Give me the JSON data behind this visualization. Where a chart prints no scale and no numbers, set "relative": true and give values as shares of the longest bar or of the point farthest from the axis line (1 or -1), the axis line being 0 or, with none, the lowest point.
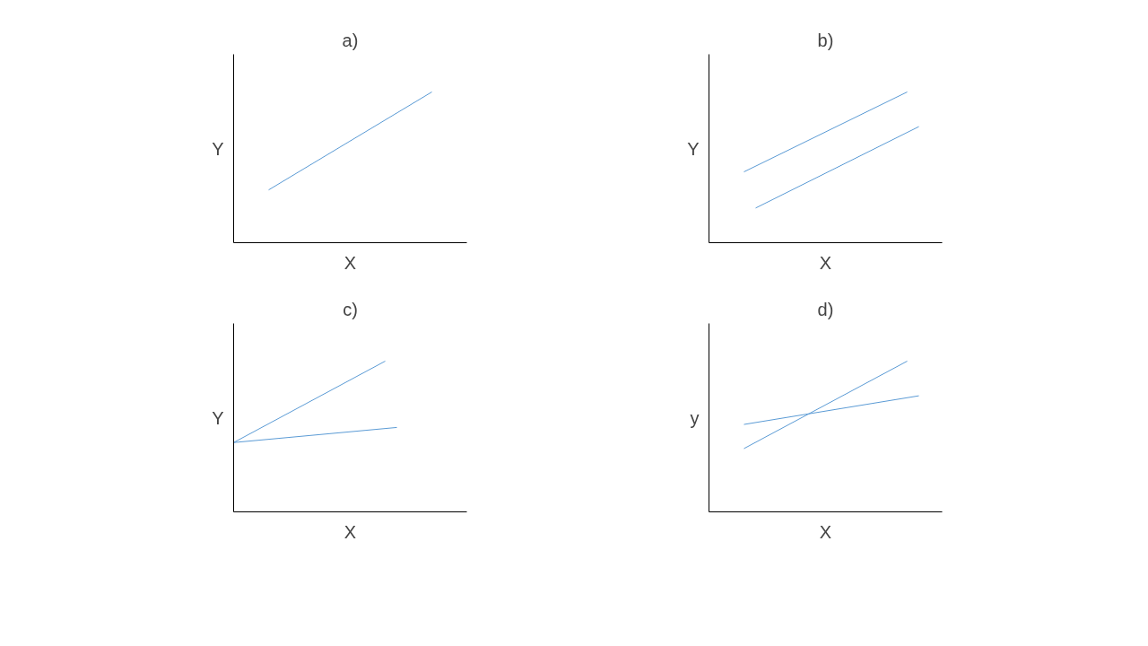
{
  "chart_data": [
    {
      "type": "line",
      "relative": true,
      "title": "a)",
      "xlabel": "X",
      "ylabel": "Y",
      "grid": false,
      "tick_labels": false,
      "categories": [
        null,
        null,
        null,
        null,
        null,
        null,
        null,
        null,
        null,
        null,
        null,
        null,
        null,
        null,
        null,
        null,
        null,
        null,
        null,
        null,
        null
      ],
      "series": [
        {
          "color": "#5b9bd5",
          "values": [
            null,
            null,
            null,
            0.35,
            null,
            null,
            null,
            null,
            null,
            null,
            null,
            null,
            null,
            null,
            null,
            null,
            null,
            1,
            null,
            null,
            null
          ]
        }
      ]
    },
    {
      "type": "line",
      "relative": true,
      "title": "b)",
      "xlabel": "X",
      "ylabel": "Y",
      "grid": false,
      "tick_labels": false,
      "categories": [
        null,
        null,
        null,
        null,
        null,
        null,
        null,
        null,
        null,
        null,
        null,
        null,
        null,
        null,
        null,
        null,
        null,
        null,
        null,
        null,
        null
      ],
      "series": [
        {
          "color": "#5b9bd5",
          "values": [
            null,
            null,
            null,
            0.47,
            null,
            null,
            null,
            null,
            null,
            null,
            null,
            null,
            null,
            null,
            null,
            null,
            null,
            1,
            null,
            null,
            null
          ]
        },
        {
          "color": "#5b9bd5",
          "values": [
            null,
            null,
            null,
            null,
            0.23,
            null,
            null,
            null,
            null,
            null,
            null,
            null,
            null,
            null,
            null,
            null,
            null,
            null,
            0.77,
            null,
            null
          ]
        }
      ]
    },
    {
      "type": "line",
      "relative": true,
      "title": "c)",
      "xlabel": "X",
      "ylabel": "Y",
      "grid": false,
      "tick_labels": false,
      "categories": [
        null,
        null,
        null,
        null,
        null,
        null,
        null,
        null,
        null,
        null,
        null,
        null,
        null,
        null,
        null,
        null,
        null,
        null,
        null,
        null,
        null
      ],
      "series": [
        {
          "color": "#5b9bd5",
          "values": [
            0.46,
            null,
            null,
            null,
            null,
            null,
            null,
            null,
            null,
            null,
            null,
            null,
            null,
            1,
            null,
            null,
            null,
            null,
            null,
            null,
            null
          ]
        },
        {
          "color": "#5b9bd5",
          "values": [
            0.46,
            null,
            null,
            null,
            null,
            null,
            null,
            null,
            null,
            null,
            null,
            null,
            null,
            null,
            0.56,
            null,
            null,
            null,
            null,
            null,
            null
          ]
        }
      ]
    },
    {
      "type": "line",
      "relative": true,
      "title": "d)",
      "xlabel": "X",
      "ylabel": "y",
      "grid": false,
      "tick_labels": false,
      "categories": [
        null,
        null,
        null,
        null,
        null,
        null,
        null,
        null,
        null,
        null,
        null,
        null,
        null,
        null,
        null,
        null,
        null,
        null,
        null,
        null,
        null
      ],
      "series": [
        {
          "color": "#5b9bd5",
          "values": [
            null,
            null,
            null,
            0.42,
            null,
            null,
            null,
            null,
            null,
            null,
            null,
            null,
            null,
            null,
            null,
            null,
            null,
            1,
            null,
            null,
            null
          ]
        },
        {
          "color": "#5b9bd5",
          "values": [
            null,
            null,
            null,
            0.58,
            null,
            null,
            null,
            null,
            null,
            null,
            null,
            null,
            null,
            null,
            null,
            null,
            null,
            null,
            0.77,
            null,
            null
          ]
        }
      ]
    }
  ]
}
